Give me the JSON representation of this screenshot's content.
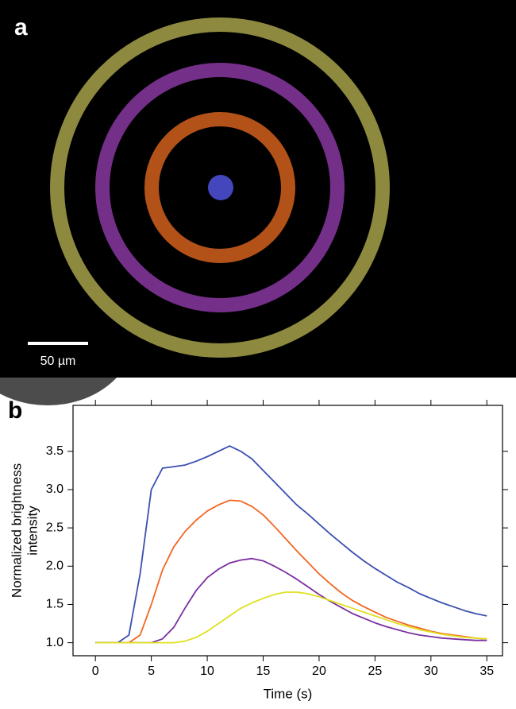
{
  "panels": {
    "a": {
      "label": "a",
      "scale_bar": "50 µm"
    },
    "b": {
      "label": "b"
    }
  },
  "chart_data": {
    "type": "line",
    "xlabel": "Time (s)",
    "ylabel": [
      "Normalized brightness",
      "intensity"
    ],
    "x": [
      0,
      1,
      2,
      3,
      4,
      5,
      6,
      7,
      8,
      9,
      10,
      11,
      12,
      13,
      14,
      15,
      16,
      17,
      18,
      19,
      20,
      21,
      22,
      23,
      24,
      25,
      26,
      27,
      28,
      29,
      30,
      31,
      32,
      33,
      34,
      35
    ],
    "series": [
      {
        "color": "#3b4fb0",
        "values": [
          1.0,
          1.0,
          1.0,
          1.1,
          1.9,
          3.0,
          3.28,
          3.3,
          3.32,
          3.37,
          3.43,
          3.5,
          3.57,
          3.5,
          3.4,
          3.25,
          3.1,
          2.95,
          2.8,
          2.68,
          2.55,
          2.42,
          2.3,
          2.18,
          2.07,
          1.97,
          1.88,
          1.79,
          1.72,
          1.64,
          1.58,
          1.52,
          1.47,
          1.42,
          1.38,
          1.35
        ]
      },
      {
        "color": "#f26522",
        "values": [
          1.0,
          1.0,
          1.0,
          1.0,
          1.1,
          1.5,
          1.95,
          2.25,
          2.45,
          2.6,
          2.72,
          2.8,
          2.86,
          2.85,
          2.78,
          2.67,
          2.52,
          2.36,
          2.2,
          2.05,
          1.9,
          1.77,
          1.65,
          1.55,
          1.47,
          1.4,
          1.33,
          1.28,
          1.23,
          1.19,
          1.15,
          1.12,
          1.1,
          1.08,
          1.06,
          1.05
        ]
      },
      {
        "color": "#7b2fa0",
        "values": [
          1.0,
          1.0,
          1.0,
          1.0,
          1.0,
          1.0,
          1.05,
          1.2,
          1.45,
          1.68,
          1.85,
          1.96,
          2.04,
          2.08,
          2.1,
          2.07,
          2.0,
          1.92,
          1.83,
          1.73,
          1.63,
          1.54,
          1.46,
          1.38,
          1.32,
          1.26,
          1.21,
          1.17,
          1.13,
          1.1,
          1.08,
          1.06,
          1.05,
          1.04,
          1.03,
          1.03
        ]
      },
      {
        "color": "#e0e020",
        "values": [
          1.0,
          1.0,
          1.0,
          1.0,
          1.0,
          1.0,
          1.0,
          1.0,
          1.02,
          1.07,
          1.15,
          1.25,
          1.35,
          1.45,
          1.52,
          1.58,
          1.63,
          1.66,
          1.66,
          1.64,
          1.6,
          1.55,
          1.5,
          1.45,
          1.4,
          1.35,
          1.3,
          1.25,
          1.21,
          1.17,
          1.14,
          1.11,
          1.09,
          1.07,
          1.06,
          1.05
        ]
      }
    ],
    "xlim": [
      -2,
      36.4
    ],
    "xticks": [
      0,
      5,
      10,
      15,
      20,
      25,
      30,
      35
    ],
    "ylim": [
      0.83,
      4.1
    ],
    "yticks": [
      {
        "value": 1,
        "label": "1.0"
      },
      1.5,
      {
        "value": 2,
        "label": "2.0"
      },
      2.5,
      {
        "value": 3,
        "label": "3.0"
      },
      3.5
    ]
  }
}
